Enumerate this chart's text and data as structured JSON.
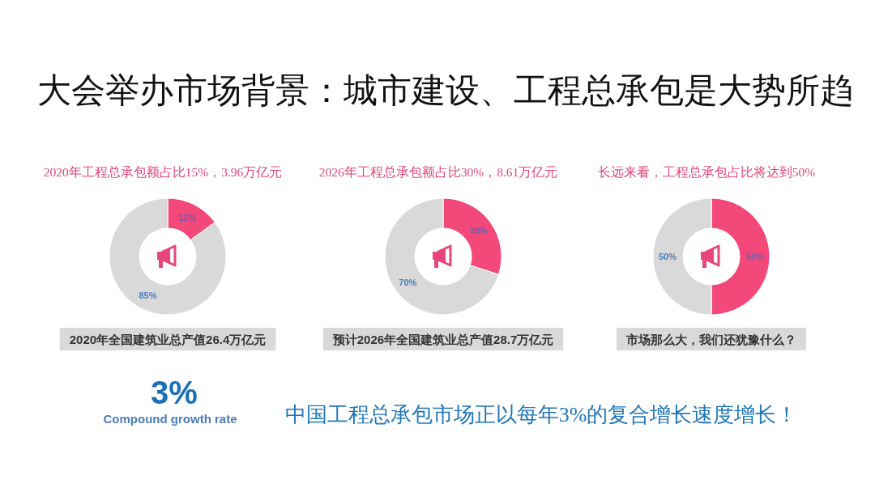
{
  "chart_data": [
    {
      "type": "other",
      "title": "大会举办市场背景：城市建设、工程总承包是大势所趋"
    },
    {
      "type": "donut",
      "title": "2020年工程总承包额占比15%，3.96万亿元",
      "categories": [
        null,
        null
      ],
      "values": [
        15,
        85
      ],
      "colors": [
        "#f2487a",
        "#d9d9d9"
      ],
      "value_labels": [
        "15%",
        "85%"
      ],
      "annotations": [
        "2020年全国建筑业总产值26.4万亿元"
      ]
    },
    {
      "type": "donut",
      "title": "2026年工程总承包额占比30%，8.61万亿元",
      "categories": [
        null,
        null
      ],
      "values": [
        30,
        70
      ],
      "colors": [
        "#f2487a",
        "#d9d9d9"
      ],
      "value_labels": [
        "30%",
        "70%"
      ],
      "annotations": [
        "预计2026年全国建筑业总产值28.7万亿元"
      ]
    },
    {
      "type": "donut",
      "title": "长远来看，工程总承包占比将达到50%",
      "categories": [
        null,
        null
      ],
      "values": [
        50,
        50
      ],
      "colors": [
        "#f2487a",
        "#d9d9d9"
      ],
      "value_labels": [
        "50%",
        "50%"
      ],
      "annotations": [
        "市场那么大，我们还犹豫什么？"
      ]
    },
    {
      "type": "other",
      "annotations": [
        "3%",
        "Compound growth rate",
        "中国工程总承包市场正以每年3%的复合增长速度增长！"
      ]
    }
  ]
}
